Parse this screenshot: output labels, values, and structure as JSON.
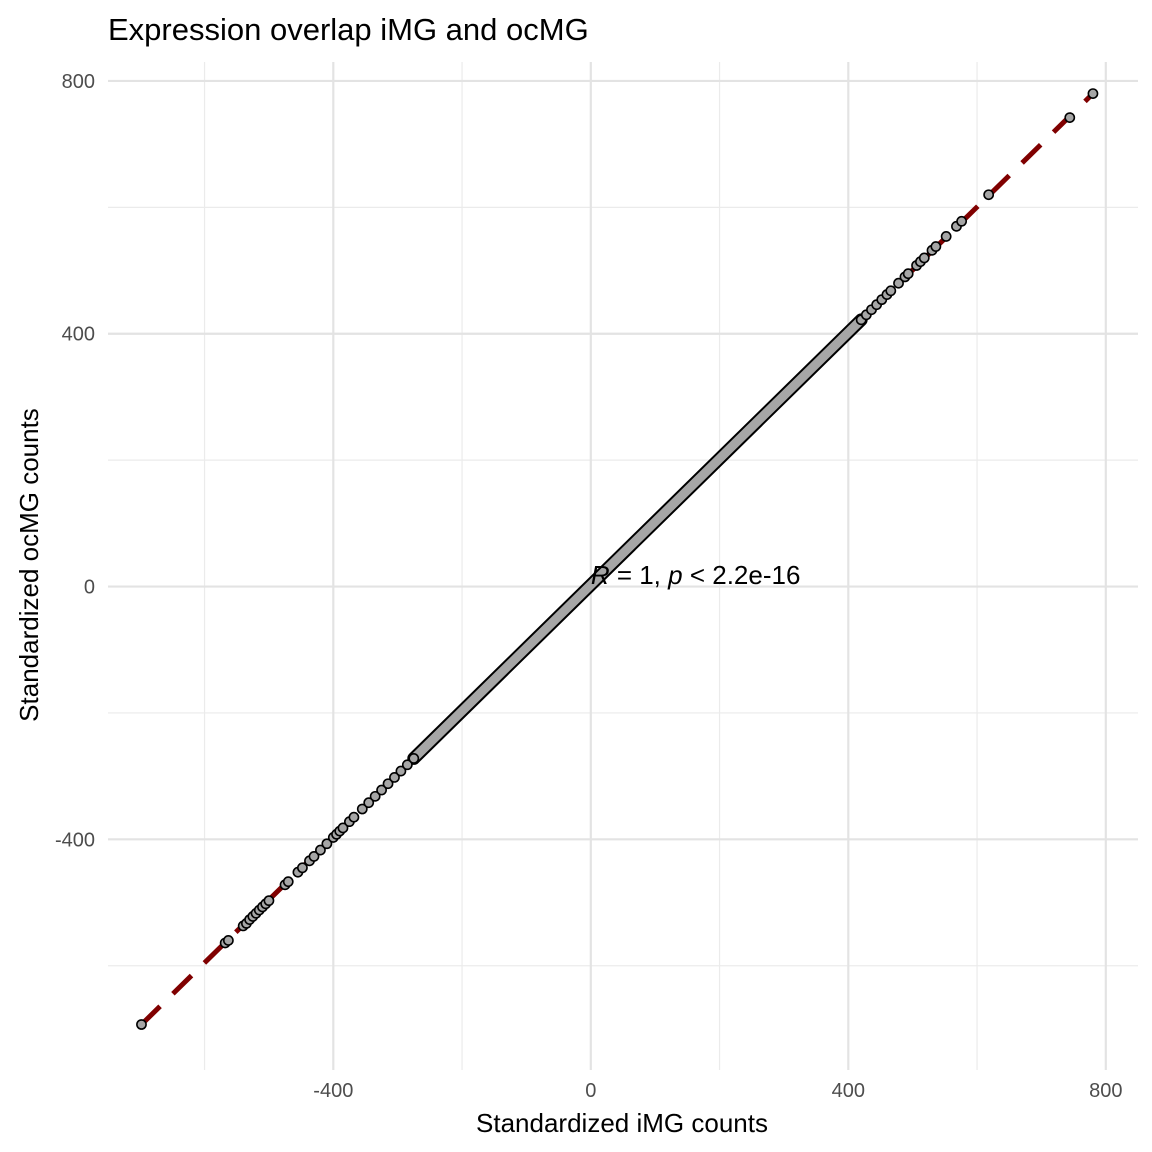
{
  "chart_data": {
    "type": "scatter",
    "title": "Expression overlap iMG and ocMG",
    "xlabel": "Standardized iMG counts",
    "ylabel": "Standardized ocMG counts",
    "xlim": [
      -750,
      850
    ],
    "ylim": [
      -765,
      830
    ],
    "x_ticks": [
      -400,
      0,
      400,
      800
    ],
    "x_tick_labels": [
      "-400",
      "0",
      "400",
      "800"
    ],
    "y_ticks": [
      -400,
      0,
      400,
      800
    ],
    "y_tick_labels": [
      "-400",
      "0",
      "400",
      "800"
    ],
    "x_minor_ticks": [
      -600,
      -200,
      200,
      600
    ],
    "y_minor_ticks": [
      -600,
      -200,
      200,
      600
    ],
    "grid": true,
    "reference_line": {
      "style": "dashed",
      "color": "#800000",
      "from": [
        -698,
        -693
      ],
      "to": [
        780,
        780
      ]
    },
    "annotation": {
      "prefix": "R",
      "middle": " = 1, ",
      "p_symbol": "p",
      "suffix": " < 2.2e-16",
      "x": 0,
      "y": 10
    },
    "point_color": "#a6a6a6",
    "point_edge_color": "#000000",
    "series": [
      {
        "points": [
          [
            -698,
            -693
          ],
          [
            -568,
            -564
          ],
          [
            -563,
            -560
          ],
          [
            -540,
            -537
          ],
          [
            -535,
            -533
          ],
          [
            -530,
            -527
          ],
          [
            -525,
            -522
          ],
          [
            -520,
            -517
          ],
          [
            -515,
            -512
          ],
          [
            -510,
            -507
          ],
          [
            -505,
            -502
          ],
          [
            -500,
            -497
          ],
          [
            -475,
            -472
          ],
          [
            -470,
            -467
          ],
          [
            -455,
            -452
          ],
          [
            -448,
            -445
          ],
          [
            -437,
            -434
          ],
          [
            -430,
            -427
          ],
          [
            -420,
            -417
          ],
          [
            -410,
            -407
          ],
          [
            -400,
            -397
          ],
          [
            -395,
            -392
          ],
          [
            -390,
            -387
          ],
          [
            -385,
            -382
          ],
          [
            -375,
            -372
          ],
          [
            -368,
            -365
          ],
          [
            -355,
            -352
          ],
          [
            -345,
            -342
          ],
          [
            -335,
            -332
          ],
          [
            -325,
            -322
          ],
          [
            -315,
            -312
          ],
          [
            -305,
            -302
          ],
          [
            -295,
            -292
          ],
          [
            -285,
            -282
          ],
          [
            -275,
            -272
          ],
          [
            420,
            422
          ],
          [
            428,
            430
          ],
          [
            436,
            438
          ],
          [
            444,
            446
          ],
          [
            452,
            454
          ],
          [
            460,
            462
          ],
          [
            466,
            468
          ],
          [
            478,
            480
          ],
          [
            488,
            490
          ],
          [
            493,
            495
          ],
          [
            506,
            508
          ],
          [
            512,
            514
          ],
          [
            518,
            520
          ],
          [
            530,
            532
          ],
          [
            536,
            538
          ],
          [
            552,
            554
          ],
          [
            568,
            570
          ],
          [
            576,
            578
          ],
          [
            618,
            620
          ],
          [
            744,
            742
          ],
          [
            780,
            780
          ]
        ],
        "dense_segment": {
          "from": [
            -275,
            -272
          ],
          "to": [
            420,
            422
          ]
        }
      }
    ]
  }
}
